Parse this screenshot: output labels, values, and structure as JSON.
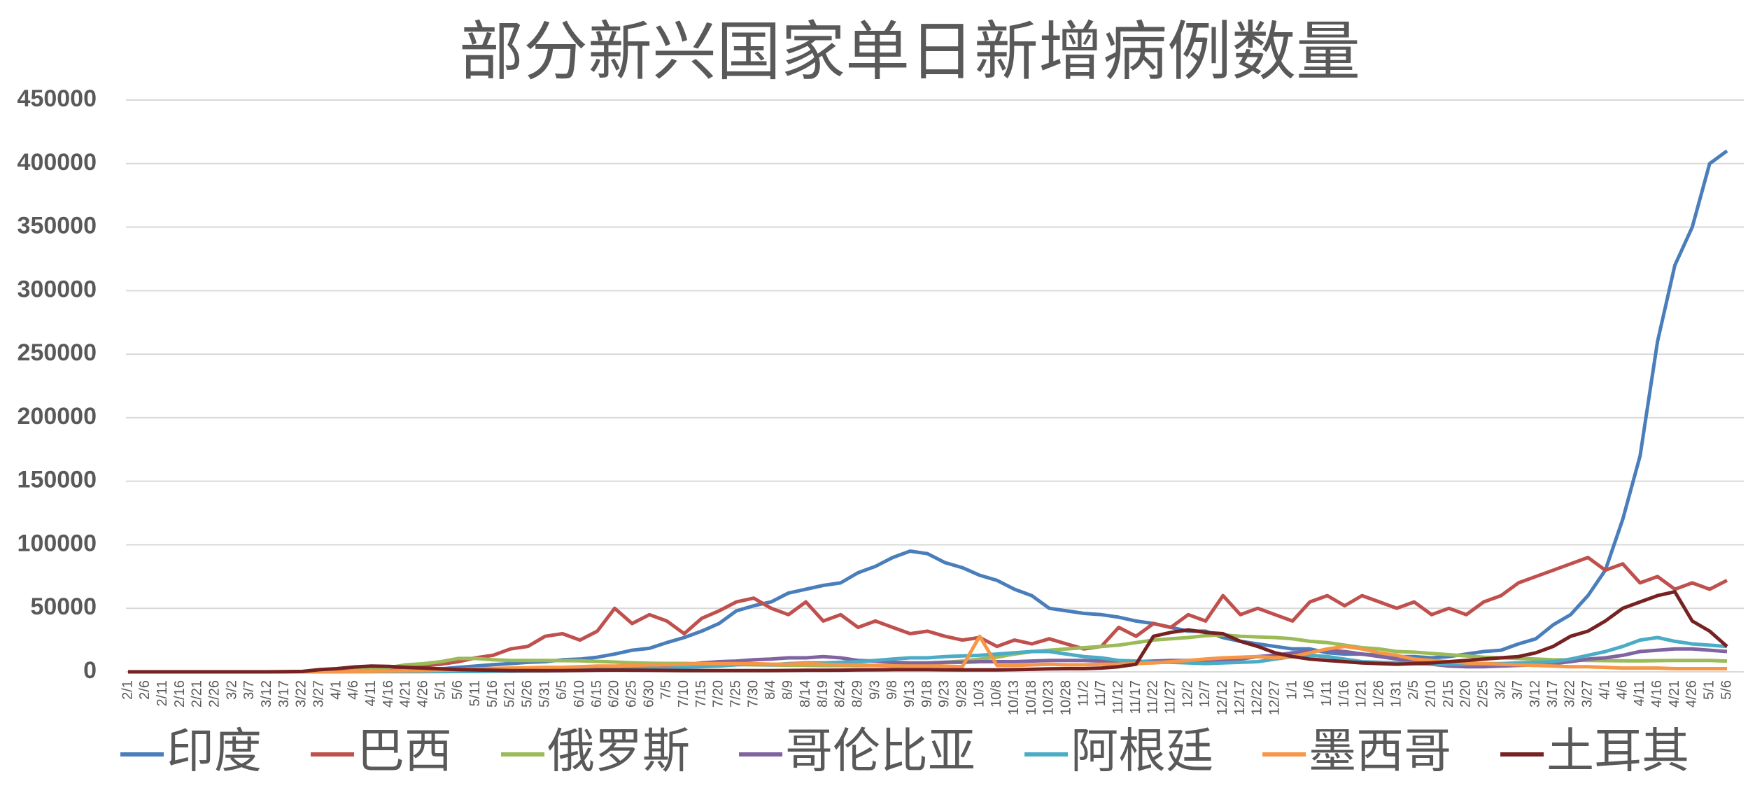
{
  "chart_data": {
    "type": "line",
    "title": "部分新兴国家单日新增病例数量",
    "categories": [
      "2/1",
      "2/6",
      "2/11",
      "2/16",
      "2/21",
      "2/26",
      "3/2",
      "3/7",
      "3/12",
      "3/17",
      "3/22",
      "3/27",
      "4/1",
      "4/6",
      "4/11",
      "4/16",
      "4/21",
      "4/26",
      "5/1",
      "5/6",
      "5/11",
      "5/16",
      "5/21",
      "5/26",
      "5/31",
      "6/5",
      "6/10",
      "6/15",
      "6/20",
      "6/25",
      "6/30",
      "7/5",
      "7/10",
      "7/15",
      "7/20",
      "7/25",
      "7/30",
      "8/4",
      "8/9",
      "8/14",
      "8/19",
      "8/24",
      "8/29",
      "9/3",
      "9/8",
      "9/13",
      "9/18",
      "9/23",
      "9/28",
      "10/3",
      "10/8",
      "10/13",
      "10/18",
      "10/23",
      "10/28",
      "11/2",
      "11/7",
      "11/12",
      "11/17",
      "11/22",
      "11/27",
      "12/2",
      "12/7",
      "12/12",
      "12/17",
      "12/22",
      "12/27",
      "1/1",
      "1/6",
      "1/11",
      "1/16",
      "1/21",
      "1/26",
      "1/31",
      "2/5",
      "2/10",
      "2/15",
      "2/20",
      "2/25",
      "3/2",
      "3/7",
      "3/12",
      "3/17",
      "3/22",
      "3/27",
      "4/1",
      "4/6",
      "4/11",
      "4/16",
      "4/21",
      "4/26",
      "5/1",
      "5/6"
    ],
    "series": [
      {
        "name": "印度",
        "color": "#4a7ebb",
        "values": [
          0,
          0,
          0,
          0,
          0,
          0,
          0,
          0,
          10,
          20,
          80,
          150,
          400,
          600,
          900,
          1300,
          1500,
          1800,
          2300,
          3500,
          4500,
          5600,
          6500,
          7500,
          8000,
          9500,
          10000,
          11500,
          14000,
          17000,
          18500,
          23000,
          27000,
          32000,
          38000,
          48000,
          52000,
          55000,
          62000,
          65000,
          68000,
          70000,
          78000,
          83000,
          90000,
          95000,
          93000,
          86000,
          82000,
          76000,
          72000,
          65000,
          60000,
          50000,
          48000,
          46000,
          45000,
          43000,
          40000,
          38000,
          35000,
          32000,
          32000,
          27000,
          24000,
          22000,
          20000,
          18000,
          18000,
          15000,
          14000,
          14000,
          13000,
          12000,
          12000,
          11000,
          12000,
          14000,
          16000,
          17000,
          22000,
          26000,
          37000,
          45000,
          60000,
          80000,
          120000,
          170000,
          260000,
          320000,
          350000,
          400000,
          410000
        ]
      },
      {
        "name": "巴西",
        "color": "#c0504d",
        "values": [
          0,
          0,
          0,
          0,
          0,
          0,
          0,
          0,
          20,
          100,
          300,
          500,
          1000,
          1500,
          1800,
          2500,
          3000,
          5000,
          6000,
          8000,
          11000,
          13000,
          18000,
          20000,
          28000,
          30000,
          25000,
          32000,
          50000,
          38000,
          45000,
          40000,
          30000,
          42000,
          48000,
          55000,
          58000,
          50000,
          45000,
          55000,
          40000,
          45000,
          35000,
          40000,
          35000,
          30000,
          32000,
          28000,
          25000,
          27000,
          20000,
          25000,
          22000,
          26000,
          22000,
          18000,
          20000,
          35000,
          28000,
          38000,
          35000,
          45000,
          40000,
          60000,
          45000,
          50000,
          45000,
          40000,
          55000,
          60000,
          52000,
          60000,
          55000,
          50000,
          55000,
          45000,
          50000,
          45000,
          55000,
          60000,
          70000,
          75000,
          80000,
          85000,
          90000,
          80000,
          85000,
          70000,
          75000,
          65000,
          70000,
          65000,
          72000
        ]
      },
      {
        "name": "俄罗斯",
        "color": "#9bbb59",
        "values": [
          0,
          0,
          0,
          0,
          0,
          0,
          0,
          0,
          10,
          20,
          50,
          150,
          500,
          1000,
          1800,
          3400,
          5500,
          6400,
          8000,
          10500,
          10500,
          9500,
          8900,
          8900,
          8900,
          8800,
          8700,
          8200,
          7700,
          7100,
          6700,
          6600,
          6600,
          6400,
          6000,
          5800,
          5500,
          5400,
          5200,
          5100,
          4900,
          4900,
          4800,
          5000,
          5200,
          5500,
          6000,
          7500,
          8500,
          10000,
          11500,
          14000,
          16000,
          17000,
          18000,
          19000,
          20000,
          21000,
          23000,
          25000,
          26000,
          27000,
          28500,
          29000,
          28000,
          27500,
          27000,
          26000,
          24000,
          23000,
          21000,
          19000,
          18000,
          16000,
          15500,
          14500,
          13500,
          12500,
          11500,
          11000,
          10500,
          10000,
          9500,
          9300,
          9000,
          8800,
          8700,
          8600,
          8800,
          9000,
          9000,
          9000,
          8500
        ]
      },
      {
        "name": "哥伦比亚",
        "color": "#8064a2",
        "values": [
          0,
          0,
          0,
          0,
          0,
          0,
          0,
          0,
          0,
          10,
          50,
          100,
          100,
          200,
          200,
          300,
          400,
          400,
          500,
          600,
          700,
          800,
          900,
          1000,
          1200,
          1500,
          2000,
          2500,
          3000,
          3500,
          4000,
          4500,
          5500,
          7000,
          8000,
          8500,
          9500,
          10000,
          11000,
          11000,
          12000,
          11000,
          9000,
          8500,
          7500,
          7000,
          7000,
          7500,
          7500,
          8000,
          8000,
          8000,
          8500,
          9000,
          9000,
          9000,
          8500,
          8500,
          8000,
          8500,
          9000,
          9000,
          9000,
          9500,
          10000,
          12000,
          13000,
          15000,
          16000,
          17000,
          16000,
          14000,
          12000,
          10000,
          8000,
          6000,
          4500,
          4000,
          4000,
          4500,
          5000,
          5500,
          6500,
          8000,
          10000,
          11000,
          13000,
          16000,
          17000,
          18000,
          18000,
          17000,
          16000
        ]
      },
      {
        "name": "阿根廷",
        "color": "#4bacc6",
        "values": [
          0,
          0,
          0,
          0,
          0,
          0,
          0,
          0,
          0,
          10,
          30,
          60,
          100,
          100,
          100,
          100,
          150,
          150,
          200,
          250,
          300,
          400,
          500,
          600,
          700,
          900,
          1200,
          1400,
          1800,
          2300,
          2800,
          2500,
          3500,
          4000,
          4500,
          5500,
          6000,
          5500,
          6500,
          7000,
          7000,
          7500,
          8000,
          9000,
          10000,
          11000,
          11000,
          12000,
          12500,
          13000,
          14000,
          15000,
          16000,
          16000,
          14000,
          12000,
          11000,
          9000,
          8500,
          7500,
          7500,
          7000,
          6500,
          7000,
          7500,
          8000,
          10000,
          12000,
          13000,
          12000,
          10000,
          8000,
          7500,
          7000,
          6500,
          6000,
          6000,
          6000,
          6500,
          6500,
          7000,
          7500,
          8000,
          10000,
          13000,
          16000,
          20000,
          25000,
          27000,
          24000,
          22000,
          21000,
          20000
        ]
      },
      {
        "name": "墨西哥",
        "color": "#f79646",
        "values": [
          0,
          0,
          0,
          0,
          0,
          0,
          0,
          0,
          0,
          10,
          50,
          100,
          150,
          300,
          400,
          600,
          800,
          1000,
          1400,
          1800,
          2300,
          2700,
          3000,
          3200,
          3500,
          3500,
          4000,
          4500,
          4500,
          5000,
          5500,
          5500,
          6000,
          6500,
          6500,
          6500,
          6500,
          6000,
          6000,
          6500,
          6000,
          5500,
          5500,
          5000,
          4500,
          4500,
          4500,
          4500,
          4000,
          28000,
          5000,
          5000,
          5500,
          6000,
          5500,
          5500,
          6000,
          6000,
          6500,
          7000,
          8000,
          9000,
          10000,
          11000,
          11500,
          12000,
          11000,
          12000,
          15000,
          18000,
          20000,
          18000,
          15000,
          13000,
          10000,
          9000,
          8000,
          7000,
          6500,
          6000,
          5500,
          5000,
          4500,
          4000,
          4000,
          3500,
          3000,
          3000,
          3000,
          2500,
          2500,
          2500,
          2500
        ]
      },
      {
        "name": "土耳其",
        "color": "#772222",
        "values": [
          0,
          0,
          0,
          0,
          0,
          0,
          0,
          0,
          0,
          30,
          300,
          1700,
          2500,
          3800,
          4500,
          4300,
          3500,
          3000,
          2300,
          1800,
          1500,
          1200,
          1000,
          1000,
          900,
          1000,
          1100,
          1300,
          1400,
          1300,
          1200,
          1100,
          1000,
          1000,
          950,
          950,
          950,
          1000,
          1100,
          1200,
          1200,
          1300,
          1500,
          1600,
          1700,
          1700,
          1700,
          1600,
          1500,
          1500,
          1500,
          1700,
          2000,
          2300,
          2500,
          2500,
          3000,
          4000,
          6000,
          28000,
          31000,
          33000,
          31000,
          30000,
          24000,
          20000,
          15000,
          12000,
          10000,
          9000,
          8000,
          7000,
          6500,
          6000,
          6500,
          7000,
          8000,
          9000,
          10000,
          11000,
          12000,
          15000,
          20000,
          28000,
          32000,
          40000,
          50000,
          55000,
          60000,
          63000,
          40000,
          32000,
          20000
        ]
      }
    ],
    "ylim": [
      0,
      450000
    ],
    "yticks": [
      0,
      50000,
      100000,
      150000,
      200000,
      250000,
      300000,
      350000,
      400000,
      450000
    ],
    "grid": true
  }
}
